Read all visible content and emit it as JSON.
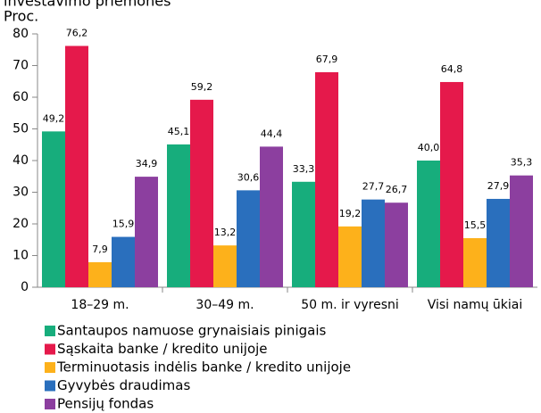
{
  "chart_data": {
    "type": "bar",
    "title": "investavimo priemonės",
    "y_label": "Proc.",
    "categories": [
      "18–29 m.",
      "30–49 m.",
      "50 m. ir vyresni",
      "Visi namų ūkiai"
    ],
    "series": [
      {
        "name": "Santaupos namuose grynaisiais pinigais",
        "color": "#17ad7c",
        "values": [
          49.2,
          45.1,
          33.3,
          40.0
        ],
        "value_labels": [
          "49,2",
          "45,1",
          "33,3",
          "40,0"
        ]
      },
      {
        "name": "Sąskaita banke / kredito unijoje",
        "color": "#e5194b",
        "values": [
          76.2,
          59.2,
          67.9,
          64.8
        ],
        "value_labels": [
          "76,2",
          "59,2",
          "67,9",
          "64,8"
        ]
      },
      {
        "name": "Terminuotasis indėlis banke / kredito unijoje",
        "color": "#fdb11b",
        "values": [
          7.9,
          13.2,
          19.2,
          15.5
        ],
        "value_labels": [
          "7,9",
          "13,2",
          "19,2",
          "15,5"
        ]
      },
      {
        "name": "Gyvybės draudimas",
        "color": "#2a6fbd",
        "values": [
          15.9,
          30.6,
          27.7,
          27.9
        ],
        "value_labels": [
          "15,9",
          "30,6",
          "27,7",
          "27,9"
        ]
      },
      {
        "name": "Pensijų fondas",
        "color": "#8c3f9f",
        "values": [
          34.9,
          44.4,
          26.7,
          35.3
        ],
        "value_labels": [
          "34,9",
          "44,4",
          "26,7",
          "35,3"
        ]
      }
    ],
    "ylim": [
      0,
      80
    ],
    "yticks": [
      0,
      10,
      20,
      30,
      40,
      50,
      60,
      70,
      80
    ],
    "grid": false,
    "legend": "bottom"
  }
}
